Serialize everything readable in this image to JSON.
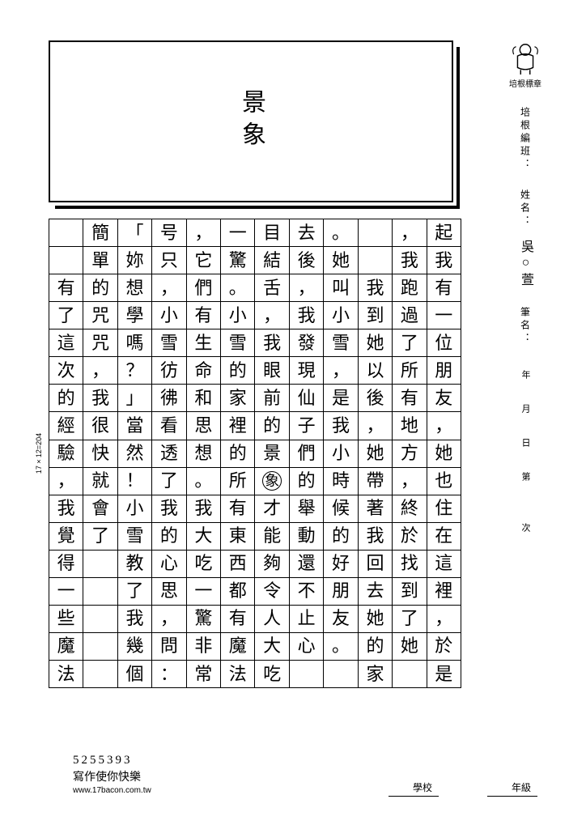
{
  "title": "景象",
  "logo_label": "培根標章",
  "fields": {
    "class_label": "培根編班：",
    "name_label": "姓名：",
    "name_value": "吳○萱",
    "penname_label": "筆名：",
    "date_label": "年　月　日　第　　次"
  },
  "grid": {
    "rows": 17,
    "cols": 12,
    "note": "17×12=204",
    "columns": [
      "起我有一位朋友，她也住在這裡，於是",
      "，我跑過了所有地方，終於找到了她",
      "　　我到她以後，她帶著我回去她的家",
      "。她叫小雪，是我小時候的好朋友。",
      "去後，我發現仙子們的舉動還不止心",
      "目結舌，我眼前的景象才能夠令人大吃",
      "一驚。小雪的家裡的所有東西都有魔法",
      "，它們有生命和思想。我大吃一驚非常",
      "号只，小雪彷彿看透了我的心思，問：",
      "「妳想學嗎？」當然！小雪教了我幾個",
      "簡單的咒咒，我很快就會了",
      "　　有了這次的經驗，我覺得一些魔法"
    ]
  },
  "footer": {
    "serial": "5255393",
    "slogan": "寫作使你快樂",
    "url": "www.17bacon.com.tw",
    "school_label": "學校",
    "grade_label": "年級"
  },
  "colors": {
    "ink": "#000000",
    "paper": "#ffffff"
  }
}
